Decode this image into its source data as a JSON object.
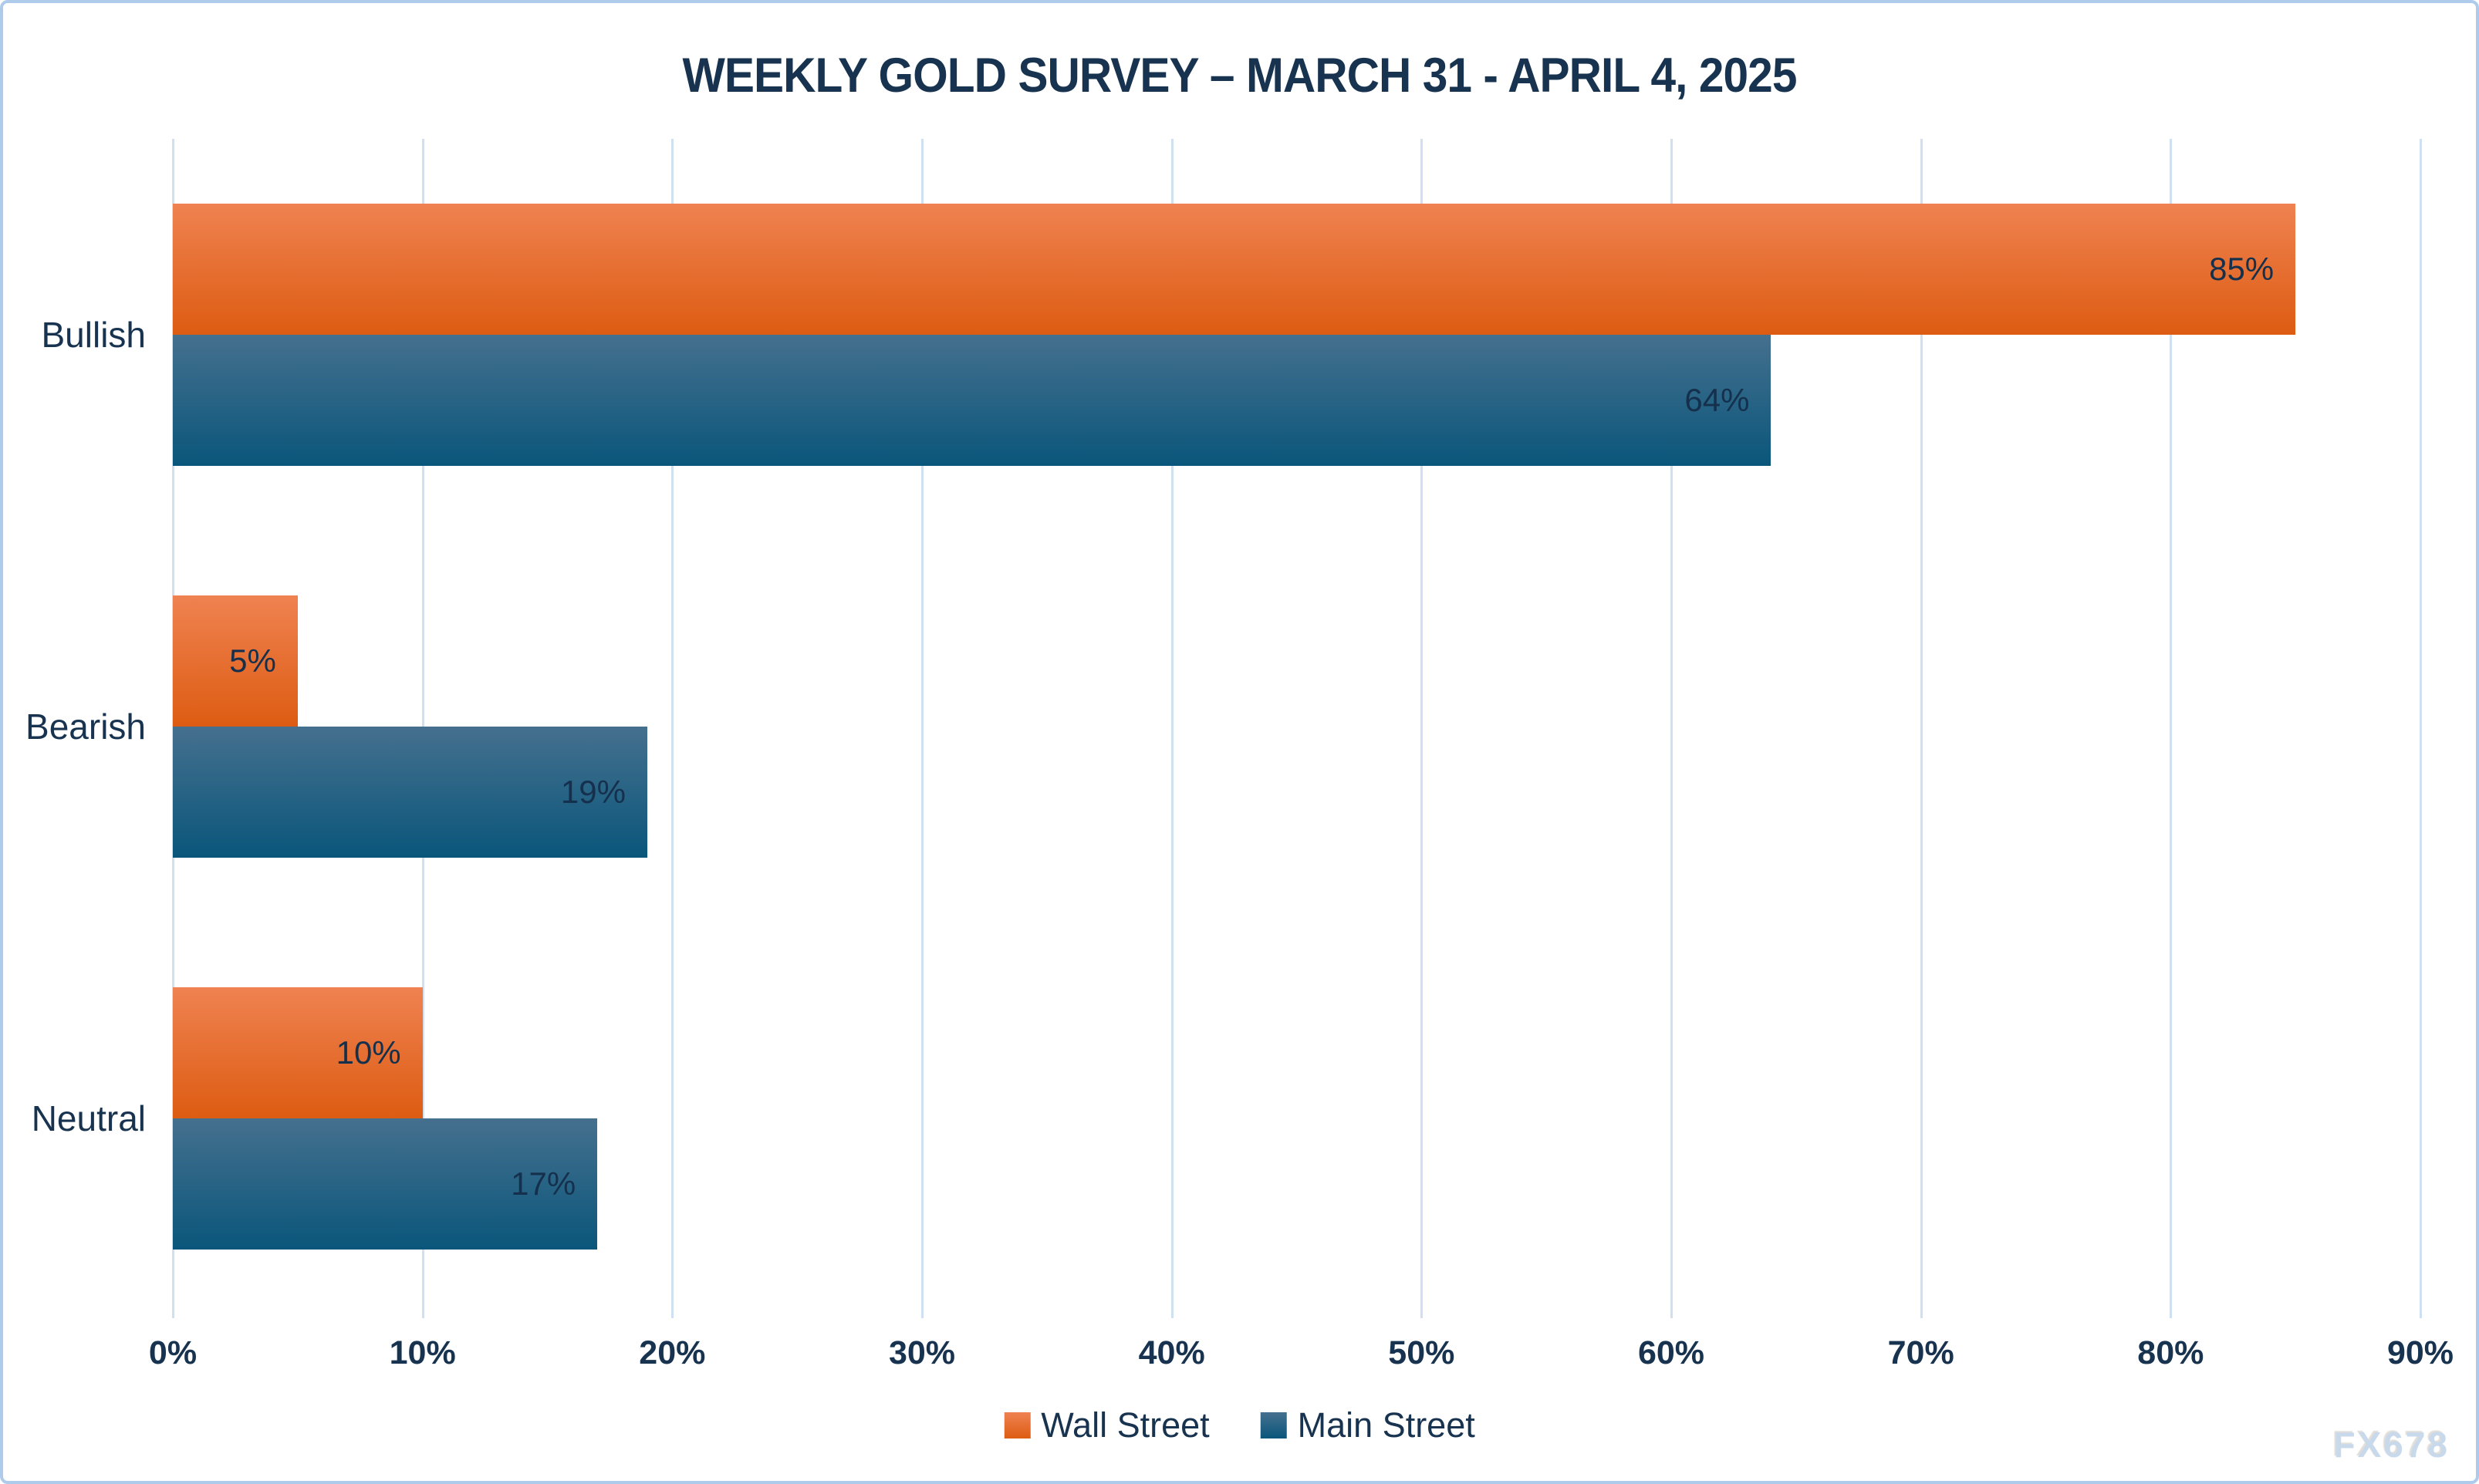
{
  "title": "WEEKLY GOLD SURVEY – MARCH 31 - APRIL 4, 2025",
  "watermark": "FX678",
  "colors": {
    "title_text": "#18334F",
    "axis_text": "#18334F",
    "gridline": "#CFE0F3",
    "frame_border": "#AECBEC",
    "background": "#FFFFFF",
    "wall_street_top": "#EF8251",
    "wall_street_bottom": "#DD5C12",
    "main_street_top": "#45708E",
    "main_street_bottom": "#0A567B"
  },
  "chart_data": {
    "type": "bar",
    "orientation": "horizontal",
    "title": "WEEKLY GOLD SURVEY – MARCH 31 - APRIL 4, 2025",
    "categories": [
      "Bullish",
      "Bearish",
      "Neutral"
    ],
    "series": [
      {
        "name": "Wall Street",
        "values": [
          85,
          5,
          10
        ],
        "labels": [
          "85%",
          "5%",
          "10%"
        ],
        "color_top": "#EF8251",
        "color_bottom": "#DD5C12"
      },
      {
        "name": "Main Street",
        "values": [
          64,
          19,
          17
        ],
        "labels": [
          "64%",
          "19%",
          "17%"
        ],
        "color_top": "#45708E",
        "color_bottom": "#0A567B"
      }
    ],
    "value_suffix": "%",
    "xlabel": "",
    "ylabel": "",
    "xlim": [
      0,
      90
    ],
    "x_ticks": [
      "0%",
      "10%",
      "20%",
      "30%",
      "40%",
      "50%",
      "60%",
      "70%",
      "80%",
      "90%"
    ],
    "grid": true,
    "legend_position": "bottom",
    "data_labels": "inside-end"
  }
}
